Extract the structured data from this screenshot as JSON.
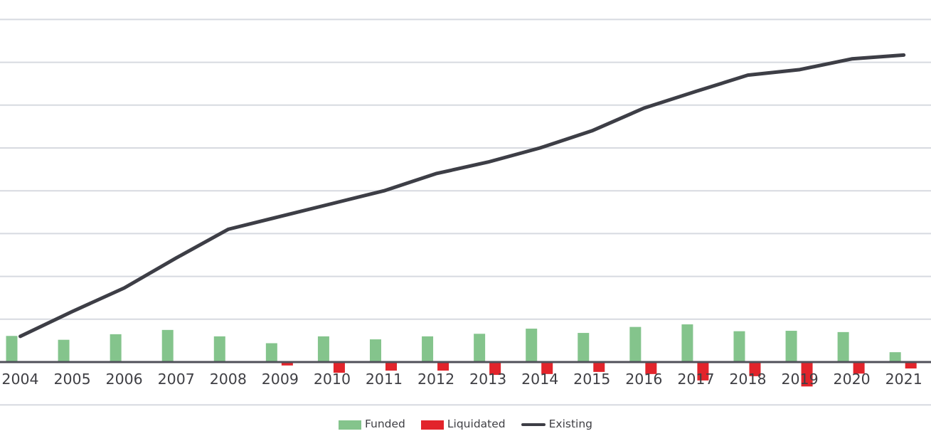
{
  "chart_data": {
    "type": "bar",
    "subtype": "grouped-bars-with-line-overlay",
    "title": "",
    "xlabel": "",
    "ylabel": "",
    "categories": [
      "2004",
      "2005",
      "2006",
      "2007",
      "2008",
      "2009",
      "2010",
      "2011",
      "2012",
      "2013",
      "2014",
      "2015",
      "2016",
      "2017",
      "2018",
      "2019",
      "2020",
      "2021"
    ],
    "series": [
      {
        "name": "Funded",
        "type": "bar",
        "color": "#84c48c",
        "values": [
          610,
          520,
          650,
          750,
          600,
          440,
          600,
          530,
          600,
          660,
          780,
          680,
          820,
          880,
          720,
          730,
          700,
          230
        ]
      },
      {
        "name": "Liquidated",
        "type": "bar",
        "color": "#e2242b",
        "values": [
          0,
          0,
          0,
          0,
          0,
          -80,
          -250,
          -200,
          -200,
          -300,
          -280,
          -230,
          -280,
          -430,
          -330,
          -570,
          -270,
          -150
        ]
      },
      {
        "name": "Existing",
        "type": "line",
        "color": "#3d3e46",
        "values": [
          600,
          1180,
          1730,
          2430,
          3100,
          3400,
          3700,
          4000,
          4400,
          4670,
          5000,
          5400,
          5930,
          6320,
          6700,
          6830,
          7080,
          7170
        ]
      }
    ],
    "ylim": [
      -1000,
      8000
    ],
    "gridline_step": 1000,
    "grid": true,
    "y_tick_labels_visible": false,
    "legend_position": "bottom"
  },
  "legend": {
    "items": [
      {
        "label": "Funded",
        "swatch": "rect",
        "color": "#84c48c"
      },
      {
        "label": "Liquidated",
        "swatch": "rect",
        "color": "#e2242b"
      },
      {
        "label": "Existing",
        "swatch": "line",
        "color": "#3d3e46"
      }
    ]
  },
  "colors": {
    "background": "#ffffff",
    "gridline": "#d7dae0",
    "axis_line": "#50505a",
    "funded_green": "#84c48c",
    "liquidated_red": "#e2242b",
    "existing_line": "#3d3e46",
    "tick_label_text": "#3f3f44",
    "legend_text": "#3f3f44"
  }
}
